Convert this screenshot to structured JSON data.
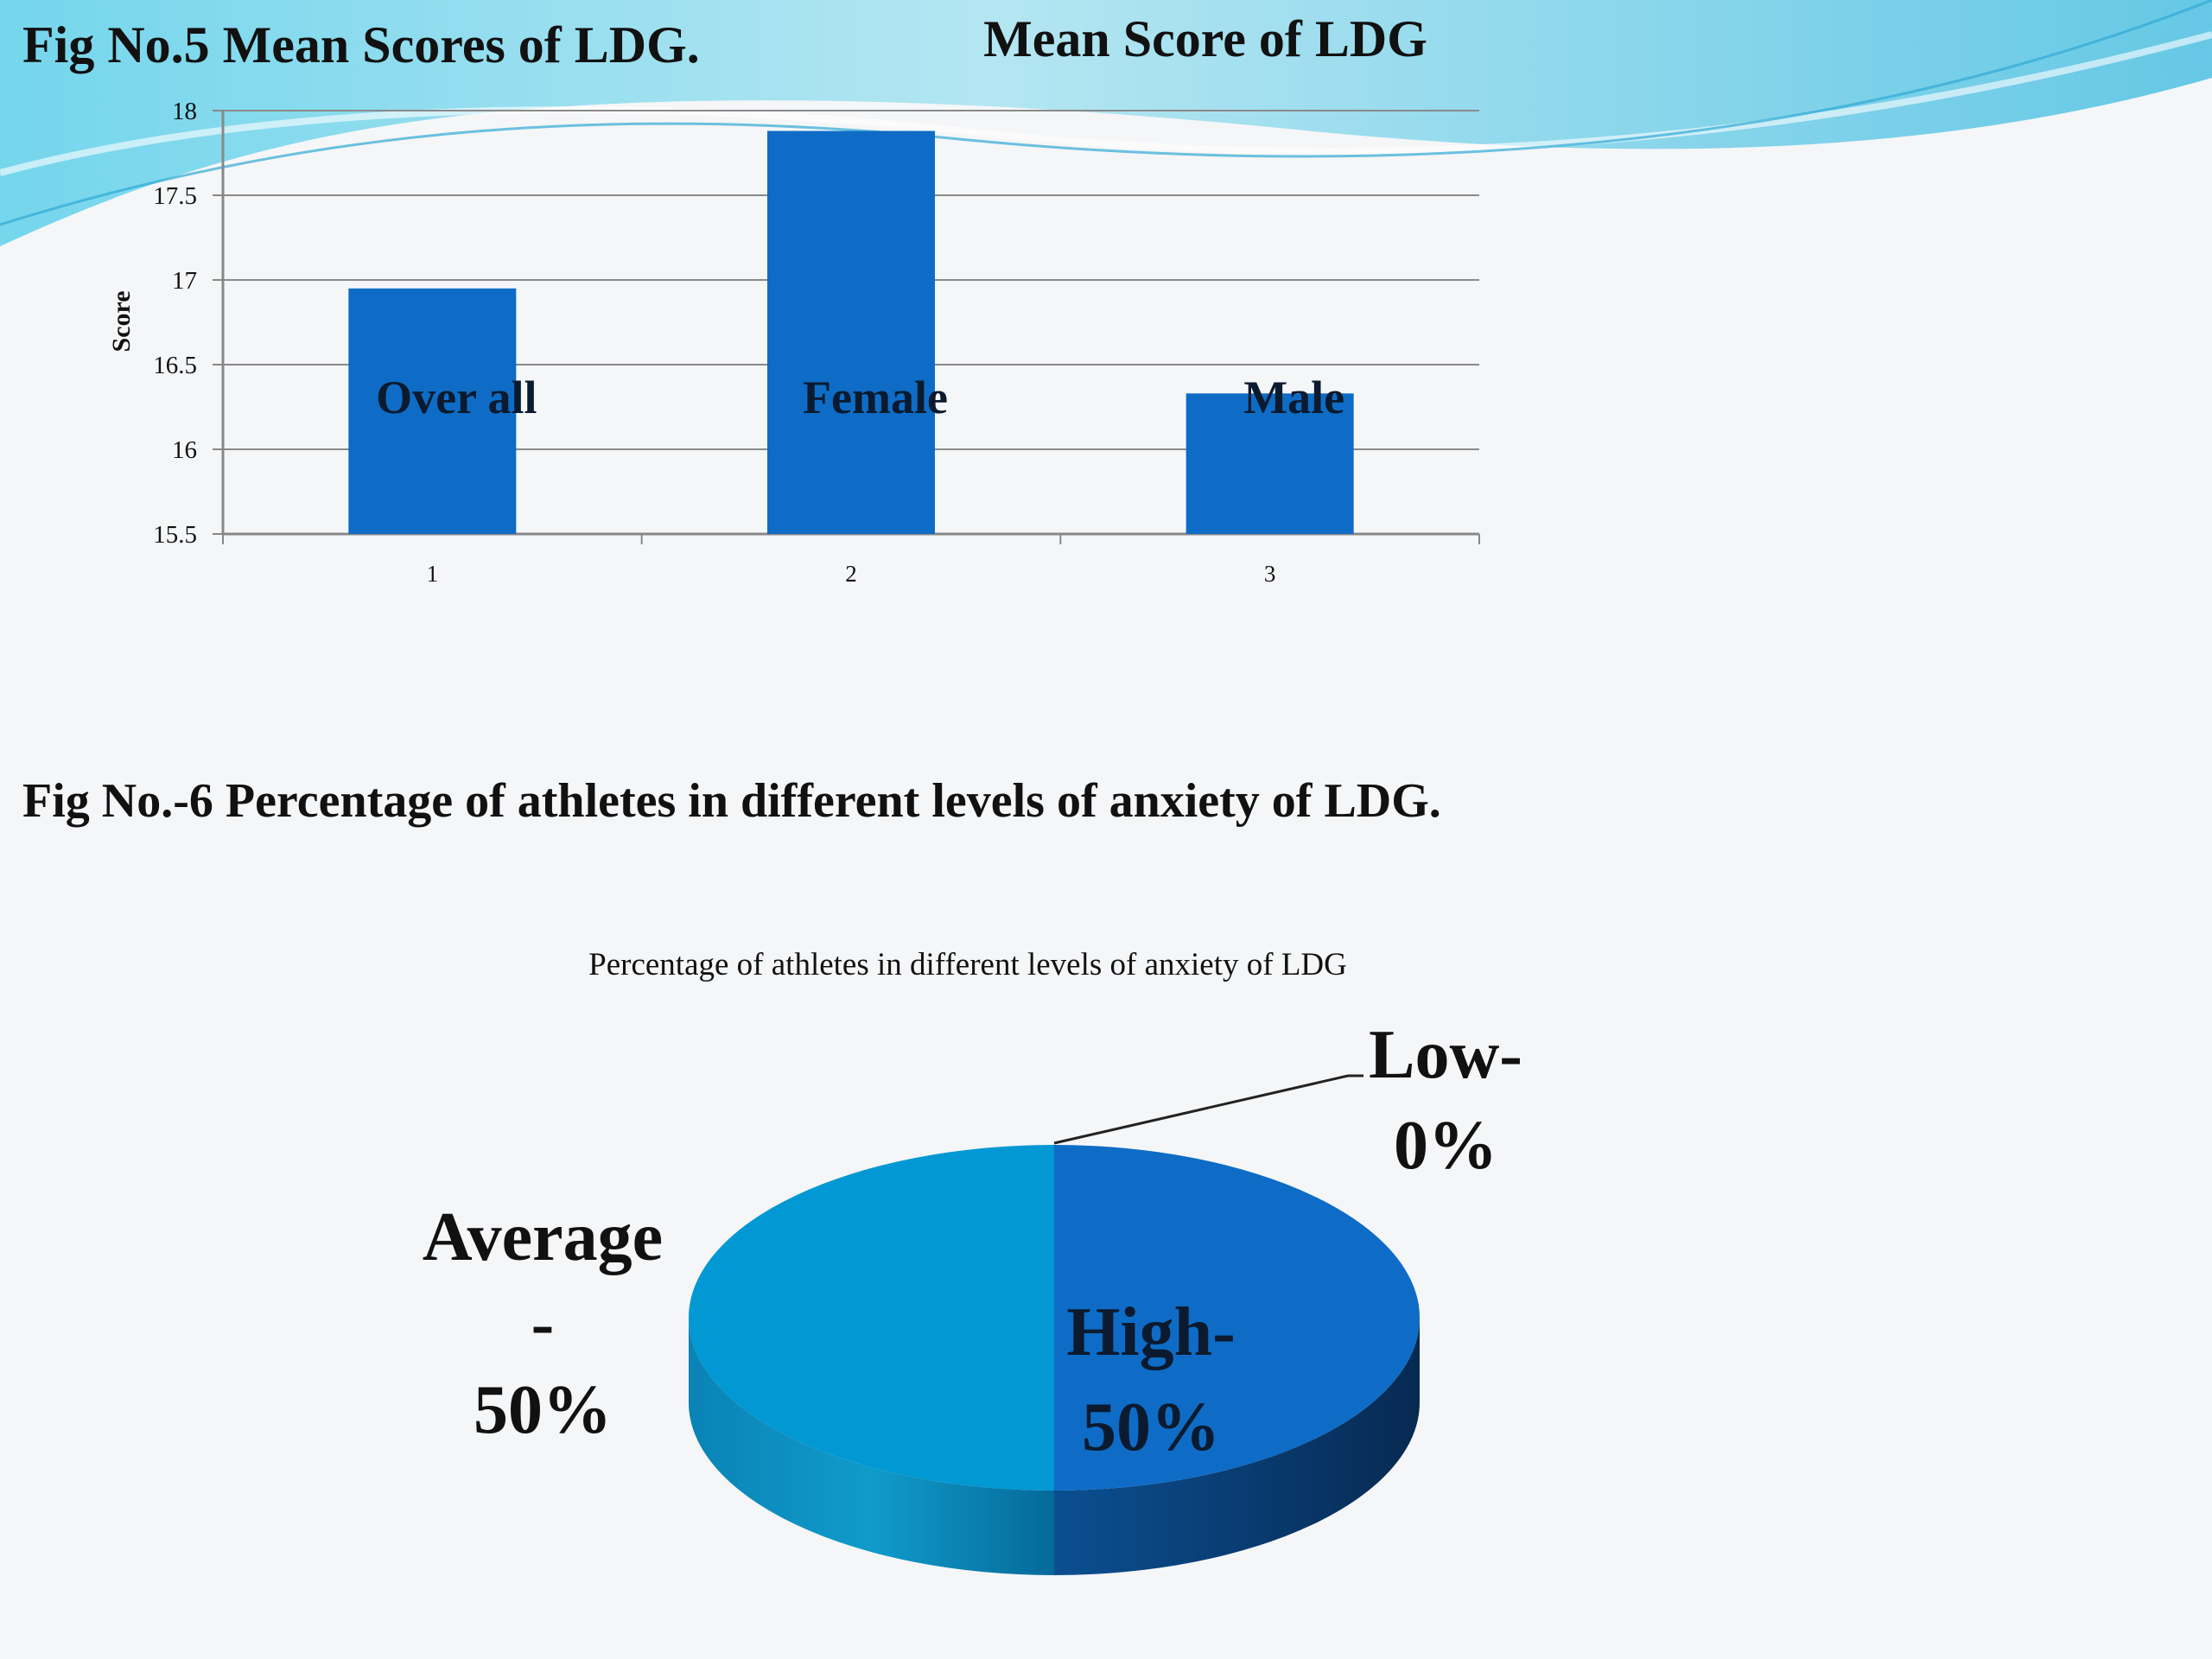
{
  "slide": {
    "fig5_caption": "Fig No.5  Mean Scores of LDG.",
    "fig6_caption": "Fig No.-6   Percentage of athletes in different levels of anxiety of LDG."
  },
  "colors": {
    "bar": "#0E6CC6",
    "pie_average": "#0198D3",
    "pie_high": "#0E6CC6",
    "wave_light": "#7FD6EC",
    "wave_dark": "#3FB6DC"
  },
  "chart_data": [
    {
      "type": "bar",
      "title": "Mean Score of LDG",
      "ylabel": "Score",
      "xlabel": "",
      "ylim": [
        15.5,
        18
      ],
      "yticks": [
        "15.5",
        "16",
        "16.5",
        "17",
        "17.5",
        "18"
      ],
      "categories": [
        "1",
        "2",
        "3"
      ],
      "bar_labels": [
        "Over all",
        "Female",
        "Male"
      ],
      "values": [
        16.95,
        17.88,
        16.33
      ],
      "grid": true
    },
    {
      "type": "pie",
      "title": "Percentage of athletes in different levels of anxiety of LDG",
      "slices": [
        {
          "name": "High",
          "value": 50,
          "label_lines": [
            "High-",
            "50%"
          ]
        },
        {
          "name": "Average",
          "value": 50,
          "label_lines": [
            "Average",
            "-",
            "50%"
          ]
        },
        {
          "name": "Low",
          "value": 0,
          "label_lines": [
            "Low-",
            "0%"
          ]
        }
      ]
    }
  ]
}
